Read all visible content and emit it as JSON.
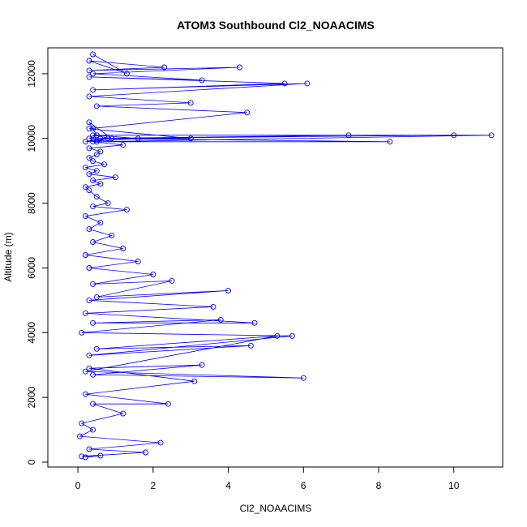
{
  "chart_data": {
    "type": "scatter",
    "mode": "lines+markers",
    "title": "ATOM3 Southbound Cl2_NOAACIMS",
    "xlabel": "Cl2_NOAACIMS",
    "ylabel": "Altitude (m)",
    "xlim": [
      -0.8,
      11.3
    ],
    "ylim": [
      -150,
      12800
    ],
    "xticks": [
      0,
      2,
      4,
      6,
      8,
      10
    ],
    "yticks": [
      0,
      2000,
      4000,
      6000,
      8000,
      10000,
      12000
    ],
    "xtick_labels": [
      "0",
      "2",
      "4",
      "6",
      "8",
      "10"
    ],
    "ytick_labels": [
      "0",
      "2000",
      "4000",
      "6000",
      "8000",
      "10000",
      "12000"
    ],
    "color": "#0000ff",
    "series": [
      {
        "name": "Cl2_NOAACIMS",
        "x": [
          0.2,
          0.6,
          0.1,
          1.8,
          0.3,
          2.2,
          0.05,
          0.4,
          0.1,
          1.2,
          0.4,
          2.4,
          0.2,
          3.1,
          0.3,
          3.3,
          0.4,
          6.0,
          0.2,
          5.3,
          0.5,
          4.6,
          0.3,
          5.7,
          0.1,
          3.8,
          0.4,
          4.7,
          0.2,
          3.6,
          0.3,
          4.0,
          0.5,
          2.5,
          0.4,
          2.0,
          0.3,
          1.6,
          0.2,
          1.2,
          0.4,
          0.9,
          0.3,
          0.6,
          0.2,
          1.3,
          0.4,
          0.8,
          0.5,
          0.3,
          0.2,
          0.6,
          0.4,
          1.0,
          0.3,
          0.5,
          0.2,
          0.7,
          0.4,
          0.3,
          0.5,
          0.6,
          0.3,
          1.2,
          0.4,
          0.8,
          0.2,
          1.6,
          0.5,
          0.4,
          0.3,
          0.9,
          0.4,
          11.0,
          0.5,
          8.3,
          0.4,
          10.0,
          0.3,
          7.2,
          0.6,
          3.0,
          0.3,
          4.5,
          0.5,
          3.0,
          0.3,
          6.1,
          0.4,
          5.5,
          0.3,
          3.3,
          0.4,
          4.3,
          0.3,
          2.3,
          0.3,
          1.3,
          0.4
        ],
        "y": [
          150,
          200,
          180,
          300,
          400,
          600,
          800,
          1000,
          1200,
          1500,
          1800,
          1800,
          2100,
          2500,
          2900,
          3000,
          2700,
          2600,
          2800,
          3900,
          3500,
          3600,
          3300,
          3900,
          4000,
          4400,
          4300,
          4300,
          4600,
          4800,
          5000,
          5300,
          5100,
          5600,
          5500,
          5800,
          6000,
          6200,
          6400,
          6600,
          6800,
          7000,
          7200,
          7400,
          7600,
          7800,
          7900,
          8000,
          8200,
          8400,
          8500,
          8600,
          8700,
          8800,
          8900,
          9000,
          9100,
          9200,
          9300,
          9400,
          9500,
          9600,
          9700,
          9800,
          9900,
          10000,
          9900,
          10000,
          10100,
          10300,
          10500,
          10000,
          10100,
          10100,
          9900,
          9900,
          10000,
          10100,
          10000,
          10100,
          10000,
          10000,
          10300,
          10800,
          11000,
          11100,
          11300,
          11700,
          11500,
          11700,
          11900,
          11800,
          12000,
          12200,
          12100,
          12200,
          12400,
          12000,
          12600
        ]
      }
    ]
  }
}
